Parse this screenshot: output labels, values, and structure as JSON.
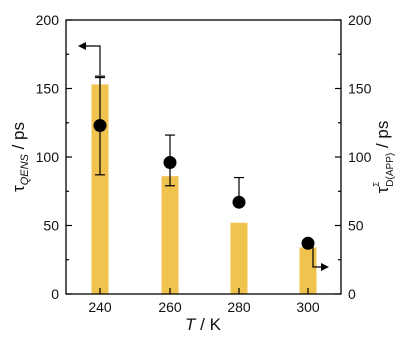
{
  "chart_data": {
    "type": "bar",
    "categories": [
      "240",
      "260",
      "280",
      "300"
    ],
    "xlabel_var": "T",
    "xlabel_unit": "/ K",
    "ylabel_left": {
      "symbol": "τ",
      "subscript": "QENS",
      "unit": "/ ps"
    },
    "ylabel_right": {
      "symbol": "τ",
      "superscript": "Σ",
      "subscript": "D(APP)",
      "unit": "/ ps"
    },
    "ylim_left": [
      0,
      200
    ],
    "ylim_right": [
      0,
      200
    ],
    "yticks": [
      "0",
      "50",
      "100",
      "150",
      "200"
    ],
    "series": [
      {
        "kind": "bar",
        "axis": "left",
        "values": [
          153,
          86,
          52,
          34
        ],
        "error_upper": [
          6,
          0,
          0,
          0
        ],
        "color": "#f0c24e"
      },
      {
        "kind": "point",
        "axis": "right",
        "values": [
          123,
          96,
          67,
          37
        ],
        "error_minus": [
          36,
          17,
          0,
          0
        ],
        "error_plus": [
          35,
          20,
          18,
          0
        ],
        "color": "#000000"
      }
    ],
    "legend_arrows": [
      {
        "series_axis": "left",
        "direction": "left",
        "near": "top-left"
      },
      {
        "series_axis": "right",
        "direction": "right",
        "near": "bottom-right"
      }
    ]
  }
}
